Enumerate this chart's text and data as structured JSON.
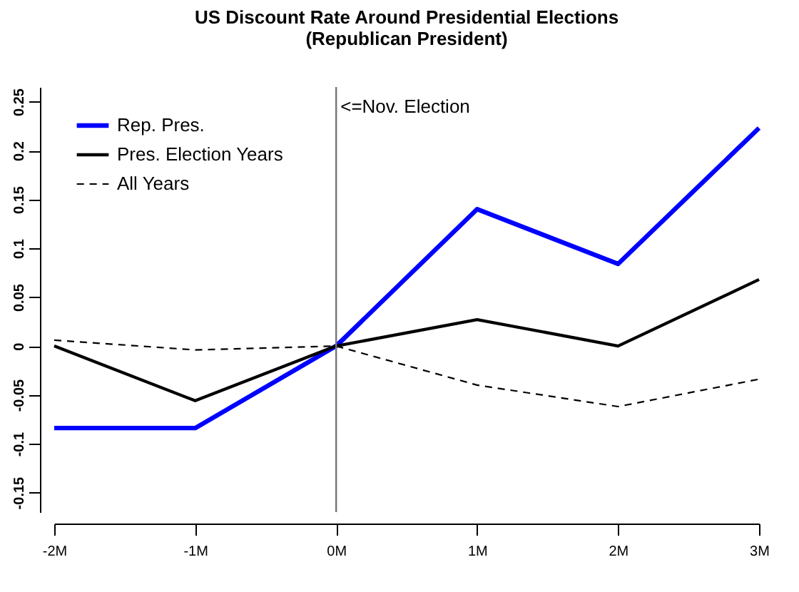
{
  "chart_data": {
    "type": "line",
    "title": "US Discount Rate Around Presidential Elections",
    "subtitle": "(Republican President)",
    "categories": [
      "-2M",
      "-1M",
      "0M",
      "1M",
      "2M",
      "3M"
    ],
    "series": [
      {
        "name": "Rep. Pres.",
        "color": "#0000ff",
        "line_style": "solid",
        "values": [
          -0.084,
          -0.084,
          0,
          0.14,
          0.084,
          0.223
        ]
      },
      {
        "name": "Pres. Election Years",
        "color": "#000000",
        "line_style": "solid",
        "values": [
          0,
          -0.056,
          0,
          0.027,
          0,
          0.068
        ]
      },
      {
        "name": "All Years",
        "color": "#000000",
        "line_style": "dashed",
        "values": [
          0.006,
          -0.004,
          0,
          -0.04,
          -0.062,
          -0.034
        ]
      }
    ],
    "ylim": [
      -0.17,
      0.265
    ],
    "yticks": [
      -0.15,
      -0.1,
      -0.05,
      0,
      0.05,
      0.1,
      0.15,
      0.2,
      0.25
    ],
    "ref_lines": [
      {
        "axis": "x",
        "value": "0M",
        "label": "<=Nov. Election",
        "color": "#777777"
      }
    ],
    "legend": "top left",
    "grid": false,
    "marker": "none"
  }
}
